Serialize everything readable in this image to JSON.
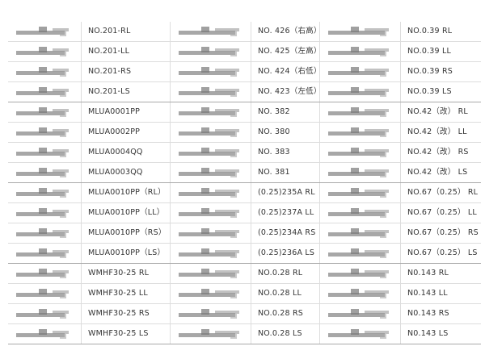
{
  "table": {
    "rows": [
      [
        "NO.201-RL",
        "NO. 426（右高）",
        "NO.0.39 RL"
      ],
      [
        "NO.201-LL",
        "NO. 425（左高）",
        "NO.0.39 LL"
      ],
      [
        "NO.201-RS",
        "NO. 424（右低）",
        "NO.0.39 RS"
      ],
      [
        "NO.201-LS",
        "NO. 423（左低）",
        "NO.0.39 LS"
      ],
      [
        "MLUA0001PP",
        "NO. 382",
        "NO.42（改） RL"
      ],
      [
        "MLUA0002PP",
        "NO. 380",
        "NO.42（改） LL"
      ],
      [
        "MLUA0004QQ",
        "NO. 383",
        "NO.42（改） RS"
      ],
      [
        "MLUA0003QQ",
        "NO. 381",
        "NO.42（改） LS"
      ],
      [
        "MLUA0010PP（RL）",
        "(0.25)235A RL",
        "NO.67（0.25） RL"
      ],
      [
        "MLUA0010PP（LL）",
        "(0.25)237A LL",
        "NO.67（0.25） LL"
      ],
      [
        "MLUA0010PP（RS）",
        "(0.25)234A RS",
        "NO.67（0.25） RS"
      ],
      [
        "MLUA0010PP（LS）",
        "(0.25)236A LS",
        "NO.67（0.25） LS"
      ],
      [
        "WMHF30-25 RL",
        "NO.0.28 RL",
        "N0.143 RL"
      ],
      [
        "WMHF30-25 LL",
        "NO.0.28 LL",
        "N0.143 LL"
      ],
      [
        "WMHF30-25 RS",
        "NO.0.28 RS",
        "N0.143 RS"
      ],
      [
        "WMHF30-25 LS",
        "NO.0.28 LS",
        "N0.143 LS"
      ]
    ]
  }
}
